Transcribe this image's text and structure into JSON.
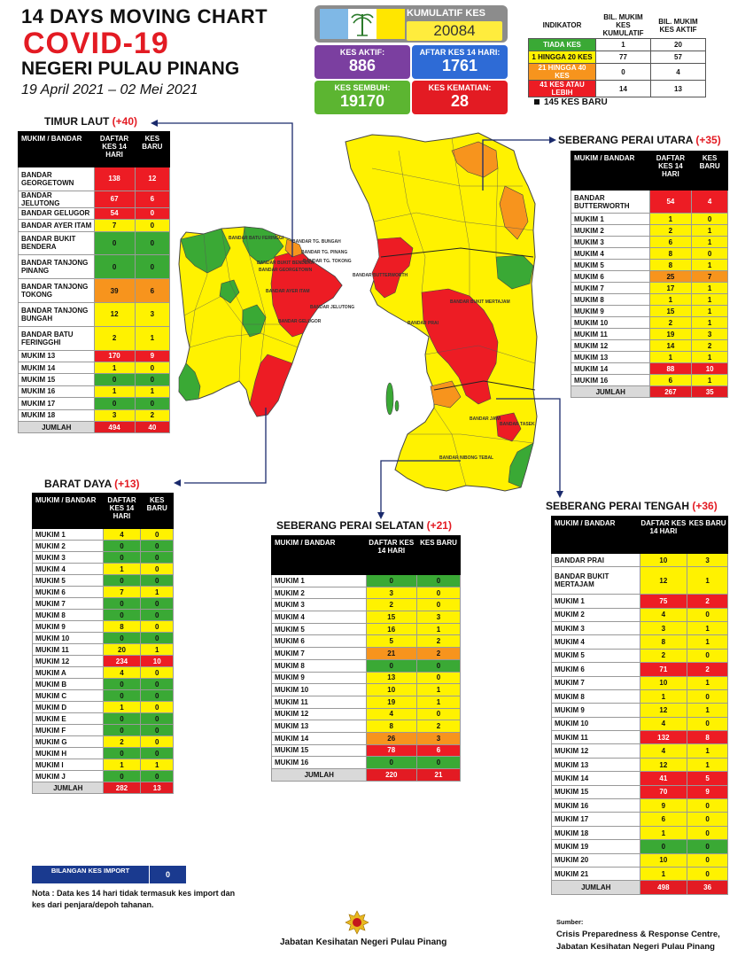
{
  "header": {
    "line1": "14  DAYS MOVING CHART",
    "line2": "COVID-19",
    "line3": "NEGERI PULAU PINANG",
    "line4": "19 April 2021 – 02 Mei 2021"
  },
  "summary": {
    "kumulatif_label": "KUMULATIF KES",
    "kumulatif_value": "20084",
    "aktif_label": "KES AKTIF:",
    "aktif_value": "886",
    "aftar_label": "AFTAR KES 14 HARI:",
    "aftar_value": "1761",
    "sembuh_label": "KES SEMBUH:",
    "sembuh_value": "19170",
    "kematian_label": "KES KEMATIAN:",
    "kematian_value": "28",
    "colors": {
      "aktif": "#7b3fa0",
      "aftar": "#2e6bd6",
      "sembuh": "#5cb531",
      "kematian": "#e31b23"
    }
  },
  "legend": {
    "col_indikator": "INDIKATOR",
    "col_kumulatif": "BIL. MUKIM KES KUMULATIF",
    "col_aktif": "BIL. MUKIM KES AKTIF",
    "rows": [
      {
        "label": "TIADA KES",
        "kumulatif": "1",
        "aktif": "20",
        "color": "#3aa935",
        "text": "#ffffff"
      },
      {
        "label": "1 HINGGA 20 KES",
        "kumulatif": "77",
        "aktif": "57",
        "color": "#fff200",
        "text": "#111111"
      },
      {
        "label": "21 HINGGA 40 KES",
        "kumulatif": "0",
        "aktif": "4",
        "color": "#f7941d",
        "text": "#ffffff"
      },
      {
        "label": "41 KES ATAU LEBIH",
        "kumulatif": "14",
        "aktif": "13",
        "color": "#ed1c24",
        "text": "#ffffff"
      }
    ],
    "kes_baru": "145 KES BARU"
  },
  "tables": {
    "timur_laut": {
      "title": "TIMUR LAUT",
      "plus": "(+40)",
      "h_name": "MUKIM / BANDAR",
      "h_daftar": "DAFTAR KES 14 HARI",
      "h_baru": "KES BARU",
      "rows": [
        {
          "name": "BANDAR GEORGETOWN",
          "daftar": "138",
          "baru": "12",
          "c": "r"
        },
        {
          "name": "BANDAR JELUTONG",
          "daftar": "67",
          "baru": "6",
          "c": "r"
        },
        {
          "name": "BANDAR GELUGOR",
          "daftar": "54",
          "baru": "0",
          "c": "r"
        },
        {
          "name": "BANDAR AYER ITAM",
          "daftar": "7",
          "baru": "0",
          "c": "y"
        },
        {
          "name": "BANDAR BUKIT BENDERA",
          "daftar": "0",
          "baru": "0",
          "c": "g"
        },
        {
          "name": "BANDAR TANJONG PINANG",
          "daftar": "0",
          "baru": "0",
          "c": "g"
        },
        {
          "name": "BANDAR TANJONG TOKONG",
          "daftar": "39",
          "baru": "6",
          "c": "o"
        },
        {
          "name": "BANDAR TANJONG BUNGAH",
          "daftar": "12",
          "baru": "3",
          "c": "y"
        },
        {
          "name": "BANDAR BATU FERINGGHI",
          "daftar": "2",
          "baru": "1",
          "c": "y"
        },
        {
          "name": "MUKIM 13",
          "daftar": "170",
          "baru": "9",
          "c": "r"
        },
        {
          "name": "MUKIM 14",
          "daftar": "1",
          "baru": "0",
          "c": "y"
        },
        {
          "name": "MUKIM 15",
          "daftar": "0",
          "baru": "0",
          "c": "g"
        },
        {
          "name": "MUKIM 16",
          "daftar": "1",
          "baru": "1",
          "c": "y"
        },
        {
          "name": "MUKIM 17",
          "daftar": "0",
          "baru": "0",
          "c": "g"
        },
        {
          "name": "MUKIM 18",
          "daftar": "3",
          "baru": "2",
          "c": "y"
        }
      ],
      "total_label": "JUMLAH",
      "total_daftar": "494",
      "total_baru": "40"
    },
    "seberang_utara": {
      "title": "SEBERANG PERAI UTARA",
      "plus": "(+35)",
      "h_name": "MUKIM / BANDAR",
      "h_daftar": "DAFTAR KES 14 HARI",
      "h_baru": "KES BARU",
      "rows": [
        {
          "name": "BANDAR BUTTERWORTH",
          "daftar": "54",
          "baru": "4",
          "c": "r"
        },
        {
          "name": "MUKIM 1",
          "daftar": "1",
          "baru": "0",
          "c": "y"
        },
        {
          "name": "MUKIM 2",
          "daftar": "2",
          "baru": "1",
          "c": "y"
        },
        {
          "name": "MUKIM 3",
          "daftar": "6",
          "baru": "1",
          "c": "y"
        },
        {
          "name": "MUKIM 4",
          "daftar": "8",
          "baru": "0",
          "c": "y"
        },
        {
          "name": "MUKIM 5",
          "daftar": "8",
          "baru": "1",
          "c": "y"
        },
        {
          "name": "MUKIM 6",
          "daftar": "25",
          "baru": "7",
          "c": "o"
        },
        {
          "name": "MUKIM 7",
          "daftar": "17",
          "baru": "1",
          "c": "y"
        },
        {
          "name": "MUKIM 8",
          "daftar": "1",
          "baru": "1",
          "c": "y"
        },
        {
          "name": "MUKIM 9",
          "daftar": "15",
          "baru": "1",
          "c": "y"
        },
        {
          "name": "MUKIM 10",
          "daftar": "2",
          "baru": "1",
          "c": "y"
        },
        {
          "name": "MUKIM 11",
          "daftar": "19",
          "baru": "3",
          "c": "y"
        },
        {
          "name": "MUKIM 12",
          "daftar": "14",
          "baru": "2",
          "c": "y"
        },
        {
          "name": "MUKIM 13",
          "daftar": "1",
          "baru": "1",
          "c": "y"
        },
        {
          "name": "MUKIM 14",
          "daftar": "88",
          "baru": "10",
          "c": "r"
        },
        {
          "name": "MUKIM 16",
          "daftar": "6",
          "baru": "1",
          "c": "y"
        }
      ],
      "total_label": "JUMLAH",
      "total_daftar": "267",
      "total_baru": "35"
    },
    "barat_daya": {
      "title": "BARAT DAYA",
      "plus": "(+13)",
      "h_name": "MUKIM / BANDAR",
      "h_daftar": "DAFTAR KES 14 HARI",
      "h_baru": "KES BARU",
      "rows": [
        {
          "name": "MUKIM 1",
          "daftar": "4",
          "baru": "0",
          "c": "y"
        },
        {
          "name": "MUKIM 2",
          "daftar": "0",
          "baru": "0",
          "c": "g"
        },
        {
          "name": "MUKIM 3",
          "daftar": "0",
          "baru": "0",
          "c": "g"
        },
        {
          "name": "MUKIM 4",
          "daftar": "1",
          "baru": "0",
          "c": "y"
        },
        {
          "name": "MUKIM 5",
          "daftar": "0",
          "baru": "0",
          "c": "g"
        },
        {
          "name": "MUKIM 6",
          "daftar": "7",
          "baru": "1",
          "c": "y"
        },
        {
          "name": "MUKIM 7",
          "daftar": "0",
          "baru": "0",
          "c": "g"
        },
        {
          "name": "MUKIM 8",
          "daftar": "0",
          "baru": "0",
          "c": "g"
        },
        {
          "name": "MUKIM 9",
          "daftar": "8",
          "baru": "0",
          "c": "y"
        },
        {
          "name": "MUKIM 10",
          "daftar": "0",
          "baru": "0",
          "c": "g"
        },
        {
          "name": "MUKIM 11",
          "daftar": "20",
          "baru": "1",
          "c": "y"
        },
        {
          "name": "MUKIM 12",
          "daftar": "234",
          "baru": "10",
          "c": "r"
        },
        {
          "name": "MUKIM A",
          "daftar": "4",
          "baru": "0",
          "c": "y"
        },
        {
          "name": "MUKIM B",
          "daftar": "0",
          "baru": "0",
          "c": "g"
        },
        {
          "name": "MUKIM C",
          "daftar": "0",
          "baru": "0",
          "c": "g"
        },
        {
          "name": "MUKIM D",
          "daftar": "1",
          "baru": "0",
          "c": "y"
        },
        {
          "name": "MUKIM E",
          "daftar": "0",
          "baru": "0",
          "c": "g"
        },
        {
          "name": "MUKIM F",
          "daftar": "0",
          "baru": "0",
          "c": "g"
        },
        {
          "name": "MUKIM G",
          "daftar": "2",
          "baru": "0",
          "c": "y"
        },
        {
          "name": "MUKIM H",
          "daftar": "0",
          "baru": "0",
          "c": "g"
        },
        {
          "name": "MUKIM I",
          "daftar": "1",
          "baru": "1",
          "c": "y"
        },
        {
          "name": "MUKIM J",
          "daftar": "0",
          "baru": "0",
          "c": "g"
        }
      ],
      "total_label": "JUMLAH",
      "total_daftar": "282",
      "total_baru": "13"
    },
    "seberang_selatan": {
      "title": "SEBERANG PERAI SELATAN",
      "plus": "(+21)",
      "h_name": "MUKIM / BANDAR",
      "h_daftar": "DAFTAR KES 14 HARI",
      "h_baru": "KES BARU",
      "rows": [
        {
          "name": "MUKIM 1",
          "daftar": "0",
          "baru": "0",
          "c": "g"
        },
        {
          "name": "MUKIM 2",
          "daftar": "3",
          "baru": "0",
          "c": "y"
        },
        {
          "name": "MUKIM 3",
          "daftar": "2",
          "baru": "0",
          "c": "y"
        },
        {
          "name": "MUKIM 4",
          "daftar": "15",
          "baru": "3",
          "c": "y"
        },
        {
          "name": "MUKIM 5",
          "daftar": "16",
          "baru": "1",
          "c": "y"
        },
        {
          "name": "MUKIM 6",
          "daftar": "5",
          "baru": "2",
          "c": "y"
        },
        {
          "name": "MUKIM 7",
          "daftar": "21",
          "baru": "2",
          "c": "o"
        },
        {
          "name": "MUKIM 8",
          "daftar": "0",
          "baru": "0",
          "c": "g"
        },
        {
          "name": "MUKIM 9",
          "daftar": "13",
          "baru": "0",
          "c": "y"
        },
        {
          "name": "MUKIM 10",
          "daftar": "10",
          "baru": "1",
          "c": "y"
        },
        {
          "name": "MUKIM 11",
          "daftar": "19",
          "baru": "1",
          "c": "y"
        },
        {
          "name": "MUKIM 12",
          "daftar": "4",
          "baru": "0",
          "c": "y"
        },
        {
          "name": "MUKIM 13",
          "daftar": "8",
          "baru": "2",
          "c": "y"
        },
        {
          "name": "MUKIM 14",
          "daftar": "26",
          "baru": "3",
          "c": "o"
        },
        {
          "name": "MUKIM 15",
          "daftar": "78",
          "baru": "6",
          "c": "r"
        },
        {
          "name": "MUKIM 16",
          "daftar": "0",
          "baru": "0",
          "c": "g"
        }
      ],
      "total_label": "JUMLAH",
      "total_daftar": "220",
      "total_baru": "21"
    },
    "seberang_tengah": {
      "title": "SEBERANG PERAI TENGAH",
      "plus": "(+36)",
      "h_name": "MUKIM / BANDAR",
      "h_daftar": "DAFTAR KES 14 HARI",
      "h_baru": "KES BARU",
      "rows": [
        {
          "name": "BANDAR PRAI",
          "daftar": "10",
          "baru": "3",
          "c": "y"
        },
        {
          "name": "BANDAR BUKIT MERTAJAM",
          "daftar": "12",
          "baru": "1",
          "c": "y"
        },
        {
          "name": "MUKIM 1",
          "daftar": "75",
          "baru": "2",
          "c": "r"
        },
        {
          "name": "MUKIM 2",
          "daftar": "4",
          "baru": "0",
          "c": "y"
        },
        {
          "name": "MUKIM 3",
          "daftar": "3",
          "baru": "1",
          "c": "y"
        },
        {
          "name": "MUKIM 4",
          "daftar": "8",
          "baru": "1",
          "c": "y"
        },
        {
          "name": "MUKIM 5",
          "daftar": "2",
          "baru": "0",
          "c": "y"
        },
        {
          "name": "MUKIM 6",
          "daftar": "71",
          "baru": "2",
          "c": "r"
        },
        {
          "name": "MUKIM 7",
          "daftar": "10",
          "baru": "1",
          "c": "y"
        },
        {
          "name": "MUKIM 8",
          "daftar": "1",
          "baru": "0",
          "c": "y"
        },
        {
          "name": "MUKIM 9",
          "daftar": "12",
          "baru": "1",
          "c": "y"
        },
        {
          "name": "MUKIM 10",
          "daftar": "4",
          "baru": "0",
          "c": "y"
        },
        {
          "name": "MUKIM 11",
          "daftar": "132",
          "baru": "8",
          "c": "r"
        },
        {
          "name": "MUKIM 12",
          "daftar": "4",
          "baru": "1",
          "c": "y"
        },
        {
          "name": "MUKIM 13",
          "daftar": "12",
          "baru": "1",
          "c": "y"
        },
        {
          "name": "MUKIM 14",
          "daftar": "41",
          "baru": "5",
          "c": "r"
        },
        {
          "name": "MUKIM 15",
          "daftar": "70",
          "baru": "9",
          "c": "r"
        },
        {
          "name": "MUKIM 16",
          "daftar": "9",
          "baru": "0",
          "c": "y"
        },
        {
          "name": "MUKIM 17",
          "daftar": "6",
          "baru": "0",
          "c": "y"
        },
        {
          "name": "MUKIM 18",
          "daftar": "1",
          "baru": "0",
          "c": "y"
        },
        {
          "name": "MUKIM 19",
          "daftar": "0",
          "baru": "0",
          "c": "g"
        },
        {
          "name": "MUKIM 20",
          "daftar": "10",
          "baru": "0",
          "c": "y"
        },
        {
          "name": "MUKIM 21",
          "daftar": "1",
          "baru": "0",
          "c": "y"
        }
      ],
      "total_label": "JUMLAH",
      "total_daftar": "498",
      "total_baru": "36"
    }
  },
  "map_labels": {
    "batu_feringgi": "BANDAR BATU FERINGGI",
    "tg_bungah": "BANDAR TG. BUNGAH",
    "tg_pinang": "BANDAR TG. PINANG",
    "tg_tokong": "BANDAR TG. TOKONG",
    "jelutong": "BANDAR JELUTONG",
    "butterworth": "BANDAR BUTTERWORTH",
    "prai": "BANDAR PRAI",
    "bukit_mertajam": "BANDAR BUKIT MERTAJAM",
    "georgetown": "BANDAR GEORGETOWN",
    "bukit_bendera": "BANDAR BUKIT BENDERA",
    "ayer_itam": "BANDAR AYER ITAM",
    "gelugor": "BANDAR GELUGOR",
    "tasek": "BANDAR TASEK",
    "nibong_tebal": "BANDAR NIBONG TEBAL",
    "jawi": "BANDAR JAWI"
  },
  "import": {
    "label": "BILANGAN KES IMPORT",
    "value": "0"
  },
  "nota": "Nota : Data kes 14 hari tidak termasuk kes import dan kes dari penjara/depoh tahanan.",
  "footer": "Jabatan Kesihatan Negeri Pulau Pinang",
  "sumber": {
    "label": "Sumber:",
    "line1": "Crisis Preparedness & Response Centre,",
    "line2": "Jabatan Kesihatan Negeri Pulau Pinang"
  }
}
